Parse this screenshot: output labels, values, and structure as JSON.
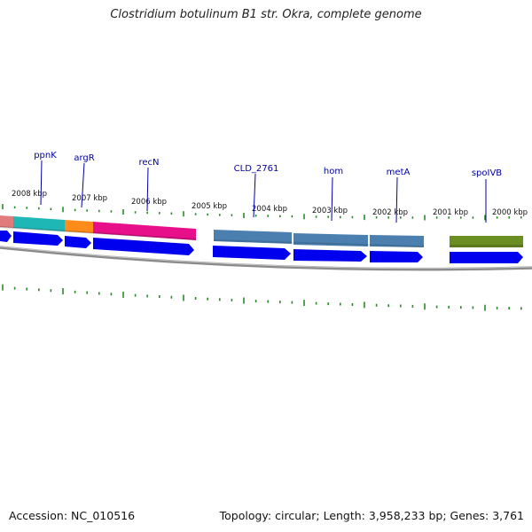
{
  "title": "Clostridium botulinum B1 str. Okra, complete genome",
  "footer": {
    "accession": "Accession: NC_010516",
    "summary": "Topology: circular; Length: 3,958,233 bp; Genes: 3,761"
  },
  "colors": {
    "backbone": "#8a8a8a",
    "tick": "#2a8a2a",
    "arrow": "#0000ee",
    "label": "#0000a0"
  },
  "kbp_labels": [
    "2008 kbp",
    "2007 kbp",
    "2006 kbp",
    "2005 kbp",
    "2004 kbp",
    "2003 kbp",
    "2002 kbp",
    "2001 kbp",
    "2000 kbp"
  ],
  "genes": [
    {
      "name": "ppnK"
    },
    {
      "name": "argR"
    },
    {
      "name": "recN"
    },
    {
      "name": "CLD_2761"
    },
    {
      "name": "hom"
    },
    {
      "name": "metA"
    },
    {
      "name": "spoIVB"
    }
  ]
}
